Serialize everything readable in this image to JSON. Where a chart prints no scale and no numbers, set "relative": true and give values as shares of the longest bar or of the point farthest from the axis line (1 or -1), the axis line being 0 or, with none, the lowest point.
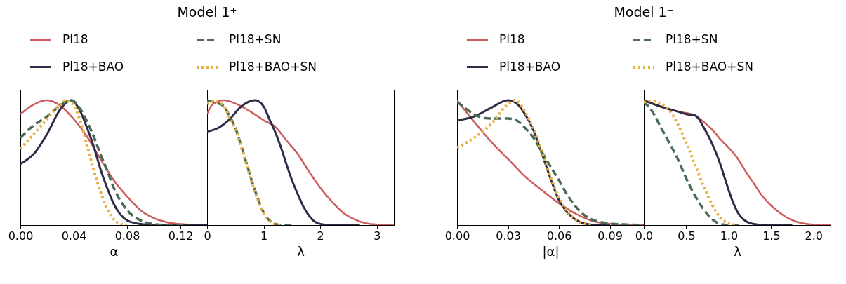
{
  "chart_data": [
    {
      "type": "line",
      "title": "Model 1⁺",
      "xlabel": "α",
      "relative": true,
      "legend": "top",
      "xlim": [
        0,
        0.14
      ],
      "xticks": [
        {
          "value": 0,
          "label": "0.00"
        },
        0.04,
        0.08,
        0.12
      ],
      "series": [
        {
          "name": "Pl18",
          "color": "#cd5c5c",
          "line_style": "solid",
          "x": [
            0,
            0.01,
            0.02,
            0.03,
            0.04,
            0.05,
            0.06,
            0.07,
            0.08,
            0.09,
            0.1,
            0.11,
            0.12,
            0.13,
            0.14
          ],
          "values": [
            0.89,
            0.966,
            1.0,
            0.956,
            0.85,
            0.71,
            0.53,
            0.36,
            0.23,
            0.12,
            0.057,
            0.023,
            0.008,
            0.002,
            0
          ]
        },
        {
          "name": "Pl18+BAO",
          "color": "#2f2c48",
          "line_style": "solid",
          "x": [
            0,
            0.01,
            0.02,
            0.03,
            0.038,
            0.045,
            0.05,
            0.055,
            0.06,
            0.065,
            0.07,
            0.075,
            0.08,
            0.09,
            0.1,
            0.14
          ],
          "values": [
            0.49,
            0.57,
            0.73,
            0.93,
            1.0,
            0.91,
            0.78,
            0.63,
            0.45,
            0.3,
            0.17,
            0.085,
            0.038,
            0.008,
            0,
            0
          ]
        },
        {
          "name": "Pl18+SN",
          "color": "#4a6b55",
          "line_style": "dashed",
          "x": [
            0,
            0.01,
            0.02,
            0.03,
            0.038,
            0.045,
            0.05,
            0.055,
            0.06,
            0.065,
            0.07,
            0.08,
            0.09,
            0.1,
            0.11,
            0.125
          ],
          "values": [
            0.7,
            0.8,
            0.87,
            0.96,
            1.0,
            0.93,
            0.83,
            0.71,
            0.57,
            0.44,
            0.3,
            0.12,
            0.038,
            0.008,
            0,
            0
          ]
        },
        {
          "name": "Pl18+BAO+SN",
          "color": "#e8b040",
          "line_style": "dotted",
          "x": [
            0,
            0.01,
            0.02,
            0.03,
            0.034,
            0.04,
            0.045,
            0.05,
            0.055,
            0.06,
            0.065,
            0.07,
            0.075,
            0.08
          ],
          "values": [
            0.61,
            0.73,
            0.85,
            0.97,
            1.0,
            0.96,
            0.83,
            0.64,
            0.44,
            0.27,
            0.13,
            0.047,
            0.008,
            0
          ]
        }
      ]
    },
    {
      "type": "line",
      "xlabel": "λ",
      "relative": true,
      "xlim": [
        0,
        3.3
      ],
      "xticks": [
        0,
        1,
        2,
        3
      ],
      "series": [
        {
          "color": "#cd5c5c",
          "line_style": "solid",
          "x": [
            0,
            0.1,
            0.3,
            0.5,
            0.8,
            1.0,
            1.2,
            1.4,
            1.6,
            1.8,
            2.0,
            2.2,
            2.4,
            2.6,
            2.8,
            3.0,
            3.3
          ],
          "values": [
            0.89,
            0.97,
            1.0,
            0.975,
            0.9,
            0.84,
            0.79,
            0.68,
            0.57,
            0.43,
            0.3,
            0.19,
            0.1,
            0.047,
            0.015,
            0.004,
            0
          ]
        },
        {
          "color": "#2f2c48",
          "line_style": "solid",
          "x": [
            0,
            0.2,
            0.4,
            0.6,
            0.85,
            1.0,
            1.1,
            1.2,
            1.3,
            1.4,
            1.5,
            1.6,
            1.7,
            1.8,
            1.9,
            2.0,
            2.2,
            2.7
          ],
          "values": [
            0.75,
            0.78,
            0.85,
            0.95,
            1.0,
            0.95,
            0.85,
            0.75,
            0.63,
            0.49,
            0.36,
            0.25,
            0.15,
            0.076,
            0.028,
            0.009,
            0,
            0
          ]
        },
        {
          "color": "#4a6b55",
          "line_style": "dashed",
          "x": [
            0,
            0.1,
            0.2,
            0.3,
            0.4,
            0.5,
            0.6,
            0.7,
            0.8,
            0.9,
            1.0,
            1.1,
            1.2,
            1.3,
            1.5
          ],
          "values": [
            1.0,
            0.99,
            0.975,
            0.95,
            0.87,
            0.78,
            0.64,
            0.49,
            0.34,
            0.21,
            0.1,
            0.038,
            0.009,
            0,
            0
          ]
        },
        {
          "color": "#e8b040",
          "line_style": "dotted",
          "x": [
            0,
            0.1,
            0.2,
            0.3,
            0.4,
            0.5,
            0.6,
            0.7,
            0.8,
            0.9,
            1.0,
            1.1,
            1.2,
            1.3
          ],
          "values": [
            0.97,
            0.99,
            0.985,
            0.95,
            0.86,
            0.77,
            0.63,
            0.48,
            0.33,
            0.2,
            0.095,
            0.035,
            0.008,
            0
          ]
        }
      ]
    },
    {
      "type": "line",
      "title": "Model 1⁻",
      "xlabel": "|α|",
      "relative": true,
      "legend": "top",
      "xlim": [
        0,
        0.11
      ],
      "xticks": [
        {
          "value": 0,
          "label": "0.00"
        },
        0.03,
        0.06,
        0.09
      ],
      "series": [
        {
          "name": "Pl18",
          "color": "#cd5c5c",
          "line_style": "solid",
          "x": [
            0,
            0.01,
            0.02,
            0.03,
            0.04,
            0.05,
            0.06,
            0.07,
            0.08,
            0.09,
            0.1,
            0.11
          ],
          "values": [
            1.0,
            0.83,
            0.67,
            0.53,
            0.39,
            0.28,
            0.175,
            0.09,
            0.032,
            0.01,
            0.002,
            0
          ]
        },
        {
          "name": "Pl18+BAO",
          "color": "#2f2c48",
          "line_style": "solid",
          "x": [
            0,
            0.01,
            0.02,
            0.03,
            0.035,
            0.04,
            0.045,
            0.05,
            0.055,
            0.06,
            0.065,
            0.07,
            0.075,
            0.08,
            0.09
          ],
          "values": [
            0.84,
            0.87,
            0.94,
            1.0,
            0.975,
            0.89,
            0.76,
            0.57,
            0.375,
            0.2,
            0.1,
            0.042,
            0.013,
            0.002,
            0
          ]
        },
        {
          "name": "Pl18+SN",
          "color": "#4a6b55",
          "line_style": "dashed",
          "x": [
            0,
            0.01,
            0.015,
            0.02,
            0.03,
            0.035,
            0.04,
            0.045,
            0.05,
            0.055,
            0.06,
            0.065,
            0.07,
            0.075,
            0.08,
            0.09,
            0.1,
            0.11
          ],
          "values": [
            0.99,
            0.89,
            0.86,
            0.855,
            0.855,
            0.84,
            0.78,
            0.7,
            0.585,
            0.47,
            0.36,
            0.24,
            0.147,
            0.08,
            0.042,
            0.013,
            0.004,
            0
          ]
        },
        {
          "name": "Pl18+BAO+SN",
          "color": "#e8b040",
          "line_style": "dotted",
          "x": [
            0,
            0.01,
            0.02,
            0.03,
            0.034,
            0.04,
            0.045,
            0.05,
            0.055,
            0.06,
            0.065,
            0.07,
            0.075,
            0.08
          ],
          "values": [
            0.62,
            0.7,
            0.81,
            0.97,
            1.0,
            0.91,
            0.77,
            0.585,
            0.39,
            0.22,
            0.11,
            0.042,
            0.01,
            0
          ]
        }
      ]
    },
    {
      "type": "line",
      "xlabel": "λ",
      "relative": true,
      "xlim": [
        0,
        2.2
      ],
      "xticks": [
        {
          "value": 0,
          "label": "0.0"
        },
        0.5,
        {
          "value": 1,
          "label": "1.0"
        },
        1.5,
        {
          "value": 2,
          "label": "2.0"
        }
      ],
      "series": [
        {
          "color": "#cd5c5c",
          "line_style": "solid",
          "x": [
            0,
            0.2,
            0.4,
            0.6,
            0.7,
            0.8,
            0.9,
            1.0,
            1.1,
            1.2,
            1.3,
            1.4,
            1.5,
            1.6,
            1.7,
            1.8,
            1.9,
            2.0,
            2.2
          ],
          "values": [
            1.0,
            0.95,
            0.91,
            0.88,
            0.83,
            0.77,
            0.69,
            0.62,
            0.54,
            0.43,
            0.33,
            0.23,
            0.156,
            0.1,
            0.055,
            0.027,
            0.011,
            0.004,
            0
          ]
        },
        {
          "color": "#2f2c48",
          "line_style": "solid",
          "x": [
            0,
            0.2,
            0.4,
            0.5,
            0.6,
            0.65,
            0.7,
            0.8,
            0.9,
            0.95,
            1.0,
            1.05,
            1.1,
            1.2,
            1.3,
            1.4,
            1.75
          ],
          "values": [
            1.0,
            0.95,
            0.91,
            0.89,
            0.88,
            0.85,
            0.79,
            0.66,
            0.49,
            0.385,
            0.28,
            0.185,
            0.11,
            0.032,
            0.008,
            0,
            0
          ]
        },
        {
          "color": "#4a6b55",
          "line_style": "dashed",
          "x": [
            0,
            0.1,
            0.2,
            0.3,
            0.4,
            0.5,
            0.6,
            0.7,
            0.8,
            0.9,
            1.0,
            1.15
          ],
          "values": [
            0.99,
            0.91,
            0.785,
            0.66,
            0.53,
            0.375,
            0.24,
            0.13,
            0.05,
            0.01,
            0,
            0
          ]
        },
        {
          "color": "#e8b040",
          "line_style": "dotted",
          "x": [
            0,
            0.1,
            0.2,
            0.3,
            0.4,
            0.5,
            0.6,
            0.7,
            0.8,
            0.9,
            1.0,
            1.1
          ],
          "values": [
            0.985,
            0.995,
            0.975,
            0.92,
            0.81,
            0.66,
            0.49,
            0.32,
            0.17,
            0.06,
            0.013,
            0
          ]
        }
      ]
    }
  ]
}
